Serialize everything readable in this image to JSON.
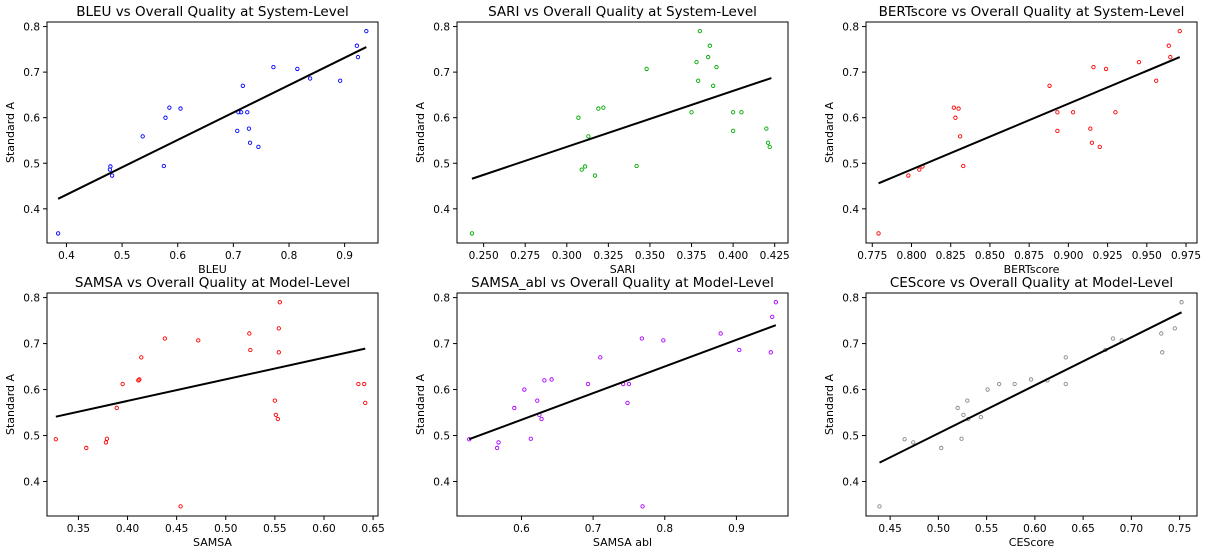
{
  "chart_data": [
    {
      "type": "scatter",
      "title": "BLEU vs Overall Quality at System-Level",
      "xlabel": "BLEU",
      "ylabel": "Standard A",
      "xlim": [
        0.365,
        0.96
      ],
      "ylim": [
        0.325,
        0.81
      ],
      "xticks": [
        0.4,
        0.5,
        0.6,
        0.7,
        0.8,
        0.9
      ],
      "xticklabels": [
        "0.4",
        "0.5",
        "0.6",
        "0.7",
        "0.8",
        "0.9"
      ],
      "yticks": [
        0.4,
        0.5,
        0.6,
        0.7,
        0.8
      ],
      "yticklabels": [
        "0.4",
        "0.5",
        "0.6",
        "0.7",
        "0.8"
      ],
      "color": "#0000ff",
      "x": [
        0.385,
        0.478,
        0.479,
        0.482,
        0.537,
        0.575,
        0.578,
        0.585,
        0.605,
        0.707,
        0.709,
        0.714,
        0.717,
        0.725,
        0.728,
        0.73,
        0.745,
        0.772,
        0.815,
        0.838,
        0.892,
        0.922,
        0.924,
        0.939
      ],
      "y": [
        0.346,
        0.486,
        0.493,
        0.473,
        0.559,
        0.494,
        0.6,
        0.622,
        0.62,
        0.571,
        0.612,
        0.612,
        0.67,
        0.612,
        0.576,
        0.545,
        0.536,
        0.711,
        0.707,
        0.686,
        0.681,
        0.758,
        0.733,
        0.79
      ],
      "fit": {
        "x": [
          0.385,
          0.939
        ],
        "y": [
          0.422,
          0.755
        ]
      }
    },
    {
      "type": "scatter",
      "title": "SARI vs Overall Quality at System-Level",
      "xlabel": "SARI",
      "ylabel": "Standard A",
      "xlim": [
        0.234,
        0.433
      ],
      "ylim": [
        0.325,
        0.81
      ],
      "xticks": [
        0.25,
        0.275,
        0.3,
        0.325,
        0.35,
        0.375,
        0.4,
        0.425
      ],
      "xticklabels": [
        "0.250",
        "0.275",
        "0.300",
        "0.325",
        "0.350",
        "0.375",
        "0.400",
        "0.425"
      ],
      "yticks": [
        0.4,
        0.5,
        0.6,
        0.7,
        0.8
      ],
      "yticklabels": [
        "0.4",
        "0.5",
        "0.6",
        "0.7",
        "0.8"
      ],
      "color": "#00aa00",
      "x": [
        0.243,
        0.307,
        0.309,
        0.311,
        0.313,
        0.317,
        0.319,
        0.322,
        0.342,
        0.348,
        0.375,
        0.378,
        0.379,
        0.38,
        0.385,
        0.386,
        0.388,
        0.39,
        0.4,
        0.4,
        0.405,
        0.42,
        0.421,
        0.422
      ],
      "y": [
        0.346,
        0.6,
        0.486,
        0.493,
        0.559,
        0.473,
        0.62,
        0.622,
        0.494,
        0.707,
        0.612,
        0.722,
        0.681,
        0.79,
        0.733,
        0.758,
        0.67,
        0.711,
        0.612,
        0.571,
        0.612,
        0.576,
        0.545,
        0.536
      ],
      "fit": {
        "x": [
          0.243,
          0.423
        ],
        "y": [
          0.466,
          0.687
        ]
      }
    },
    {
      "type": "scatter",
      "title": "BERTscore vs Overall Quality at System-Level",
      "xlabel": "BERTscore",
      "ylabel": "Standard A",
      "xlim": [
        0.771,
        0.982
      ],
      "ylim": [
        0.325,
        0.81
      ],
      "xticks": [
        0.775,
        0.8,
        0.825,
        0.85,
        0.875,
        0.9,
        0.925,
        0.95,
        0.975
      ],
      "xticklabels": [
        "0.775",
        "0.800",
        "0.825",
        "0.850",
        "0.875",
        "0.900",
        "0.925",
        "0.950",
        "0.975"
      ],
      "yticks": [
        0.4,
        0.5,
        0.6,
        0.7,
        0.8
      ],
      "yticklabels": [
        "0.4",
        "0.5",
        "0.6",
        "0.7",
        "0.8"
      ],
      "color": "#ff0000",
      "x": [
        0.779,
        0.798,
        0.805,
        0.807,
        0.827,
        0.828,
        0.83,
        0.831,
        0.833,
        0.888,
        0.893,
        0.893,
        0.903,
        0.914,
        0.915,
        0.916,
        0.92,
        0.924,
        0.93,
        0.945,
        0.956,
        0.964,
        0.965,
        0.971
      ],
      "y": [
        0.346,
        0.473,
        0.486,
        0.493,
        0.622,
        0.6,
        0.62,
        0.559,
        0.494,
        0.67,
        0.612,
        0.571,
        0.612,
        0.576,
        0.545,
        0.711,
        0.536,
        0.707,
        0.612,
        0.722,
        0.681,
        0.758,
        0.733,
        0.79
      ],
      "fit": {
        "x": [
          0.779,
          0.971
        ],
        "y": [
          0.456,
          0.733
        ]
      }
    },
    {
      "type": "scatter",
      "title": "SAMSA vs Overall Quality at Model-Level",
      "xlabel": "SAMSA",
      "ylabel": "Standard A",
      "xlim": [
        0.318,
        0.655
      ],
      "ylim": [
        0.325,
        0.81
      ],
      "xticks": [
        0.35,
        0.4,
        0.45,
        0.5,
        0.55,
        0.6,
        0.65
      ],
      "xticklabels": [
        "0.35",
        "0.40",
        "0.45",
        "0.50",
        "0.55",
        "0.60",
        "0.65"
      ],
      "yticks": [
        0.4,
        0.5,
        0.6,
        0.7,
        0.8
      ],
      "yticklabels": [
        "0.4",
        "0.5",
        "0.6",
        "0.7",
        "0.8"
      ],
      "color": "#ff0000",
      "x": [
        0.327,
        0.358,
        0.378,
        0.379,
        0.389,
        0.395,
        0.411,
        0.412,
        0.414,
        0.438,
        0.454,
        0.472,
        0.524,
        0.525,
        0.55,
        0.551,
        0.553,
        0.554,
        0.554,
        0.555,
        0.635,
        0.641,
        0.642
      ],
      "y": [
        0.492,
        0.473,
        0.485,
        0.493,
        0.56,
        0.612,
        0.62,
        0.622,
        0.67,
        0.711,
        0.346,
        0.707,
        0.722,
        0.686,
        0.576,
        0.545,
        0.536,
        0.733,
        0.681,
        0.79,
        0.612,
        0.612,
        0.571
      ],
      "fit": {
        "x": [
          0.327,
          0.642
        ],
        "y": [
          0.541,
          0.689
        ]
      }
    },
    {
      "type": "scatter",
      "title": "SAMSA_abl vs Overall Quality at Model-Level",
      "xlabel": "SAMSA abl",
      "ylabel": "Standard A",
      "xlim": [
        0.51,
        0.972
      ],
      "ylim": [
        0.325,
        0.81
      ],
      "xticks": [
        0.6,
        0.7,
        0.8,
        0.9
      ],
      "xticklabels": [
        "0.6",
        "0.7",
        "0.8",
        "0.9"
      ],
      "yticks": [
        0.4,
        0.5,
        0.6,
        0.7,
        0.8
      ],
      "yticklabels": [
        "0.4",
        "0.5",
        "0.6",
        "0.7",
        "0.8"
      ],
      "color": "#aa00ff",
      "x": [
        0.527,
        0.566,
        0.568,
        0.59,
        0.604,
        0.613,
        0.622,
        0.625,
        0.628,
        0.632,
        0.642,
        0.693,
        0.71,
        0.742,
        0.748,
        0.75,
        0.768,
        0.769,
        0.798,
        0.878,
        0.904,
        0.948,
        0.95,
        0.955
      ],
      "y": [
        0.492,
        0.473,
        0.485,
        0.56,
        0.6,
        0.493,
        0.576,
        0.545,
        0.536,
        0.62,
        0.622,
        0.612,
        0.67,
        0.612,
        0.571,
        0.612,
        0.711,
        0.346,
        0.707,
        0.722,
        0.686,
        0.681,
        0.758,
        0.79
      ],
      "fit": {
        "x": [
          0.527,
          0.955
        ],
        "y": [
          0.492,
          0.74
        ]
      }
    },
    {
      "type": "scatter",
      "title": "CEScore vs Overall Quality at Model-Level",
      "xlabel": "CEScore",
      "ylabel": "Standard A",
      "xlim": [
        0.425,
        0.768
      ],
      "ylim": [
        0.325,
        0.81
      ],
      "xticks": [
        0.45,
        0.5,
        0.55,
        0.6,
        0.65,
        0.7,
        0.75
      ],
      "xticklabels": [
        "0.45",
        "0.50",
        "0.55",
        "0.60",
        "0.65",
        "0.70",
        "0.75"
      ],
      "yticks": [
        0.4,
        0.5,
        0.6,
        0.7,
        0.8
      ],
      "yticklabels": [
        "0.4",
        "0.5",
        "0.6",
        "0.7",
        "0.8"
      ],
      "color": "#888888",
      "x": [
        0.439,
        0.465,
        0.474,
        0.503,
        0.52,
        0.524,
        0.526,
        0.53,
        0.531,
        0.544,
        0.551,
        0.563,
        0.579,
        0.596,
        0.613,
        0.632,
        0.632,
        0.673,
        0.681,
        0.69,
        0.731,
        0.732,
        0.745,
        0.752
      ],
      "y": [
        0.346,
        0.492,
        0.485,
        0.473,
        0.56,
        0.493,
        0.545,
        0.576,
        0.536,
        0.54,
        0.6,
        0.612,
        0.612,
        0.622,
        0.62,
        0.67,
        0.612,
        0.686,
        0.711,
        0.707,
        0.722,
        0.681,
        0.733,
        0.79
      ],
      "fit": {
        "x": [
          0.439,
          0.752
        ],
        "y": [
          0.441,
          0.768
        ]
      }
    }
  ]
}
